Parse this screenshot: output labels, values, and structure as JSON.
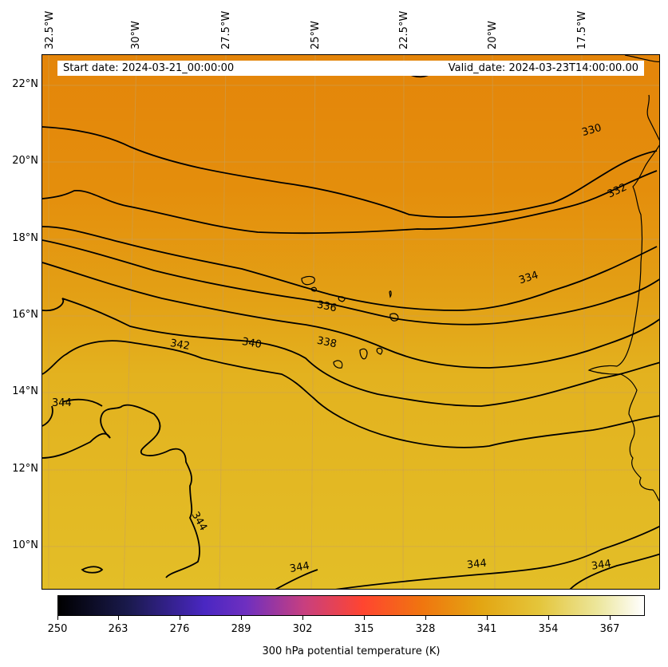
{
  "map": {
    "start_date": "Start date: 2024-03-21_00:00:00",
    "valid_date": "Valid_date: 2024-03-23T14:00:00.00",
    "lon_labels": [
      "32.5°W",
      "30°W",
      "27.5°W",
      "25°W",
      "22.5°W",
      "20°W",
      "17.5°W"
    ],
    "lat_labels": [
      "22°N",
      "20°N",
      "18°N",
      "16°N",
      "14°N",
      "12°N",
      "10°N"
    ],
    "contour_labels": [
      "330",
      "332",
      "334",
      "336",
      "338",
      "340",
      "342",
      "344",
      "344",
      "344",
      "344",
      "344"
    ],
    "colors": {
      "north": "#e4860a",
      "south": "#e3bc25",
      "contour": "#000000"
    }
  },
  "colorbar": {
    "ticks": [
      "250",
      "263",
      "276",
      "289",
      "302",
      "315",
      "328",
      "341",
      "354",
      "367"
    ],
    "label": "300 hPa potential temperature (K)",
    "colormap": "CMRmap"
  }
}
